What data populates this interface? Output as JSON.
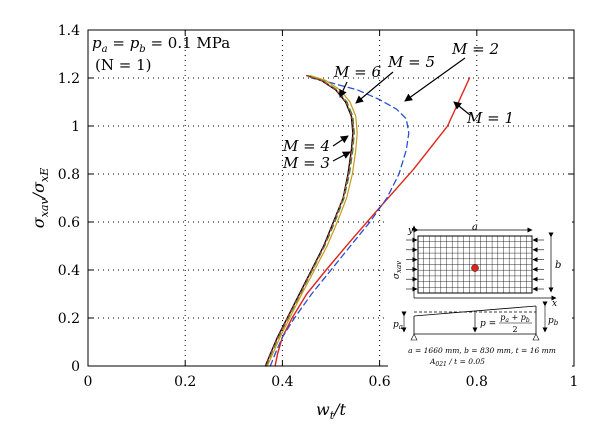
{
  "chart_data": {
    "type": "line",
    "xlabel": "w_t/t",
    "ylabel": "σ_xav/σ_xE",
    "xlim": [
      0,
      1
    ],
    "ylim": [
      0,
      1.4
    ],
    "x_ticks": [
      "0",
      "0.2",
      "0.4",
      "0.6",
      "0.8",
      "1"
    ],
    "y_ticks": [
      "0",
      "0.2",
      "0.4",
      "0.6",
      "0.8",
      "1",
      "1.2",
      "1.4"
    ],
    "grid": "dotted",
    "annotation_pressure": "p_a = p_b = 0.1 MPa",
    "annotation_n": "(N = 1)",
    "series": [
      {
        "name": "M = 1",
        "color": "#e0241b",
        "dash": "solid",
        "width": 1.4,
        "points": [
          [
            0.385,
            0
          ],
          [
            0.39,
            0.05
          ],
          [
            0.4,
            0.12
          ],
          [
            0.42,
            0.2
          ],
          [
            0.45,
            0.3
          ],
          [
            0.49,
            0.4
          ],
          [
            0.54,
            0.52
          ],
          [
            0.6,
            0.66
          ],
          [
            0.67,
            0.82
          ],
          [
            0.74,
            1.0
          ],
          [
            0.785,
            1.2
          ]
        ]
      },
      {
        "name": "M = 2",
        "color": "#2a4fd8",
        "dash": "dashed",
        "width": 1.3,
        "points": [
          [
            0.375,
            0
          ],
          [
            0.385,
            0.05
          ],
          [
            0.4,
            0.12
          ],
          [
            0.425,
            0.2
          ],
          [
            0.46,
            0.3
          ],
          [
            0.5,
            0.4
          ],
          [
            0.54,
            0.5
          ],
          [
            0.58,
            0.6
          ],
          [
            0.615,
            0.7
          ],
          [
            0.64,
            0.8
          ],
          [
            0.655,
            0.9
          ],
          [
            0.66,
            0.97
          ],
          [
            0.655,
            1.03
          ],
          [
            0.635,
            1.07
          ],
          [
            0.6,
            1.11
          ],
          [
            0.555,
            1.15
          ],
          [
            0.5,
            1.18
          ],
          [
            0.46,
            1.2
          ]
        ]
      },
      {
        "name": "M = 3",
        "color": "#000000",
        "dash": "solid",
        "width": 1.4,
        "points": [
          [
            0.365,
            0
          ],
          [
            0.375,
            0.05
          ],
          [
            0.39,
            0.12
          ],
          [
            0.41,
            0.2
          ],
          [
            0.435,
            0.3
          ],
          [
            0.46,
            0.4
          ],
          [
            0.485,
            0.5
          ],
          [
            0.505,
            0.6
          ],
          [
            0.525,
            0.7
          ],
          [
            0.535,
            0.8
          ],
          [
            0.542,
            0.9
          ],
          [
            0.545,
            0.97
          ],
          [
            0.542,
            1.04
          ],
          [
            0.53,
            1.1
          ],
          [
            0.51,
            1.15
          ],
          [
            0.48,
            1.19
          ],
          [
            0.45,
            1.21
          ]
        ]
      },
      {
        "name": "M = 4",
        "color": "#2e8b2e",
        "dash": "dashed",
        "width": 1.2,
        "points": [
          [
            0.367,
            0
          ],
          [
            0.377,
            0.05
          ],
          [
            0.392,
            0.12
          ],
          [
            0.412,
            0.2
          ],
          [
            0.437,
            0.3
          ],
          [
            0.462,
            0.4
          ],
          [
            0.487,
            0.5
          ],
          [
            0.508,
            0.6
          ],
          [
            0.527,
            0.7
          ],
          [
            0.538,
            0.8
          ],
          [
            0.545,
            0.9
          ],
          [
            0.548,
            0.97
          ],
          [
            0.545,
            1.04
          ],
          [
            0.533,
            1.1
          ],
          [
            0.513,
            1.15
          ],
          [
            0.483,
            1.19
          ],
          [
            0.452,
            1.21
          ]
        ]
      },
      {
        "name": "M = 5",
        "color": "#c99a1a",
        "dash": "solid",
        "width": 1.2,
        "points": [
          [
            0.369,
            0
          ],
          [
            0.38,
            0.05
          ],
          [
            0.395,
            0.12
          ],
          [
            0.415,
            0.2
          ],
          [
            0.44,
            0.3
          ],
          [
            0.466,
            0.4
          ],
          [
            0.492,
            0.5
          ],
          [
            0.513,
            0.6
          ],
          [
            0.532,
            0.7
          ],
          [
            0.544,
            0.8
          ],
          [
            0.551,
            0.9
          ],
          [
            0.554,
            0.97
          ],
          [
            0.551,
            1.04
          ],
          [
            0.539,
            1.1
          ],
          [
            0.519,
            1.15
          ],
          [
            0.489,
            1.19
          ],
          [
            0.457,
            1.21
          ]
        ]
      },
      {
        "name": "M = 6",
        "color": "#d04040",
        "dash": "dotted",
        "width": 1.2,
        "points": [
          [
            0.366,
            0
          ],
          [
            0.376,
            0.05
          ],
          [
            0.391,
            0.12
          ],
          [
            0.411,
            0.2
          ],
          [
            0.436,
            0.3
          ],
          [
            0.461,
            0.4
          ],
          [
            0.486,
            0.5
          ],
          [
            0.506,
            0.6
          ],
          [
            0.525,
            0.7
          ],
          [
            0.536,
            0.8
          ],
          [
            0.543,
            0.9
          ],
          [
            0.546,
            0.97
          ],
          [
            0.543,
            1.04
          ],
          [
            0.531,
            1.1
          ],
          [
            0.511,
            1.15
          ],
          [
            0.481,
            1.19
          ],
          [
            0.449,
            1.21
          ]
        ]
      }
    ],
    "labels": {
      "m1": "M = 1",
      "m2": "M = 2",
      "m3": "M = 3",
      "m4": "M = 4",
      "m5": "M = 5",
      "m6": "M = 6"
    },
    "inset": {
      "a_label": "a",
      "b_label": "b",
      "y_label": "y",
      "x_label": "x",
      "sigma_label": "σ_xav",
      "pa_label": "p_a",
      "pb_label": "p_b",
      "p_formula_lhs": "p =",
      "p_formula_num": "p_a + p_b",
      "p_formula_den": "2",
      "dims_text": "a = 1660 mm, b = 830 mm, t = 16 mm",
      "imperfection_text": "A_021 / t = 0.05",
      "dot_color": "#e0241b"
    }
  }
}
